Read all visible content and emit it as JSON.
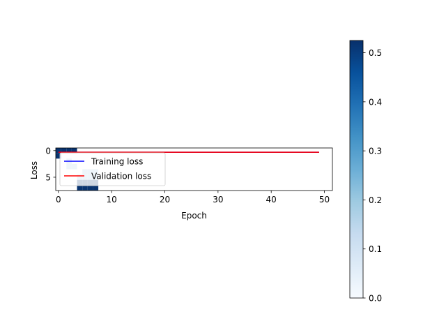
{
  "chart_data": [
    {
      "type": "line",
      "xlabel": "Epoch",
      "ylabel": "Loss",
      "xlim": [
        -0.5,
        51.5
      ],
      "ylim": [
        7.5,
        -0.5
      ],
      "x_ticks": [
        0,
        10,
        20,
        30,
        40,
        50
      ],
      "y_ticks": [
        0,
        5
      ],
      "grid": false,
      "legend_position": "upper-left",
      "x": [
        0,
        49
      ],
      "series": [
        {
          "name": "Training loss",
          "color": "#0000ff",
          "values": [
            0.3,
            0.3
          ]
        },
        {
          "name": "Validation loss",
          "color": "#ff0000",
          "values": [
            0.3,
            0.3
          ]
        }
      ]
    },
    {
      "type": "heatmap",
      "colormap": "Blues",
      "rows": 8,
      "cols": 8,
      "values": [
        [
          0.52,
          0.52,
          0.52,
          0.52,
          0.0,
          0.0,
          0.0,
          0.0
        ],
        [
          0.52,
          0.0,
          0.0,
          0.0,
          0.0,
          0.0,
          0.0,
          0.0
        ],
        [
          0.0,
          0.0,
          0.18,
          0.0,
          0.0,
          0.0,
          0.0,
          0.0
        ],
        [
          0.0,
          0.0,
          0.18,
          0.18,
          0.0,
          0.0,
          0.0,
          0.0
        ],
        [
          0.0,
          0.0,
          0.0,
          0.0,
          0.0,
          0.18,
          0.18,
          0.18
        ],
        [
          0.0,
          0.0,
          0.0,
          0.0,
          0.18,
          0.18,
          0.18,
          0.18
        ],
        [
          0.0,
          0.0,
          0.0,
          0.0,
          0.52,
          0.52,
          0.52,
          0.52
        ],
        [
          0.0,
          0.0,
          0.0,
          0.0,
          0.52,
          0.52,
          0.52,
          0.52
        ]
      ]
    },
    {
      "type": "colorbar",
      "colormap": "Blues",
      "range": [
        0.0,
        0.525
      ],
      "ticks": [
        0.0,
        0.1,
        0.2,
        0.3,
        0.4,
        0.5
      ]
    }
  ]
}
